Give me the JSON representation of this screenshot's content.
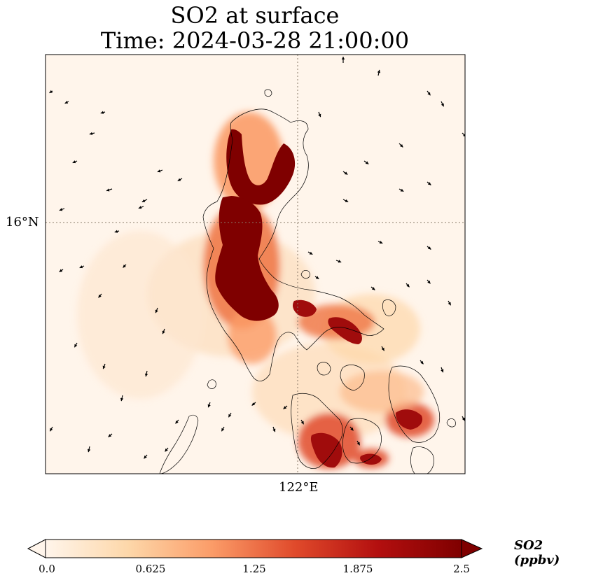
{
  "title": "SO2 at surface",
  "subtitle": "Time: 2024-03-28 21:00:00",
  "axes": {
    "lat_label": "16°N",
    "lon_label": "122°E"
  },
  "colorbar": {
    "units_label": "SO2 (ppbv)",
    "ticks": [
      "0.0",
      "0.625",
      "1.25",
      "1.875",
      "2.5"
    ],
    "min": 0,
    "max": 2.5,
    "colors": [
      "#fff5eb",
      "#fdd7a9",
      "#fb9c68",
      "#e04a2b",
      "#b30f0f",
      "#7f0000"
    ]
  },
  "map": {
    "frame_color": "#000000",
    "gridline_color": "#8a7a6a",
    "coastline_color": "#000000"
  }
}
